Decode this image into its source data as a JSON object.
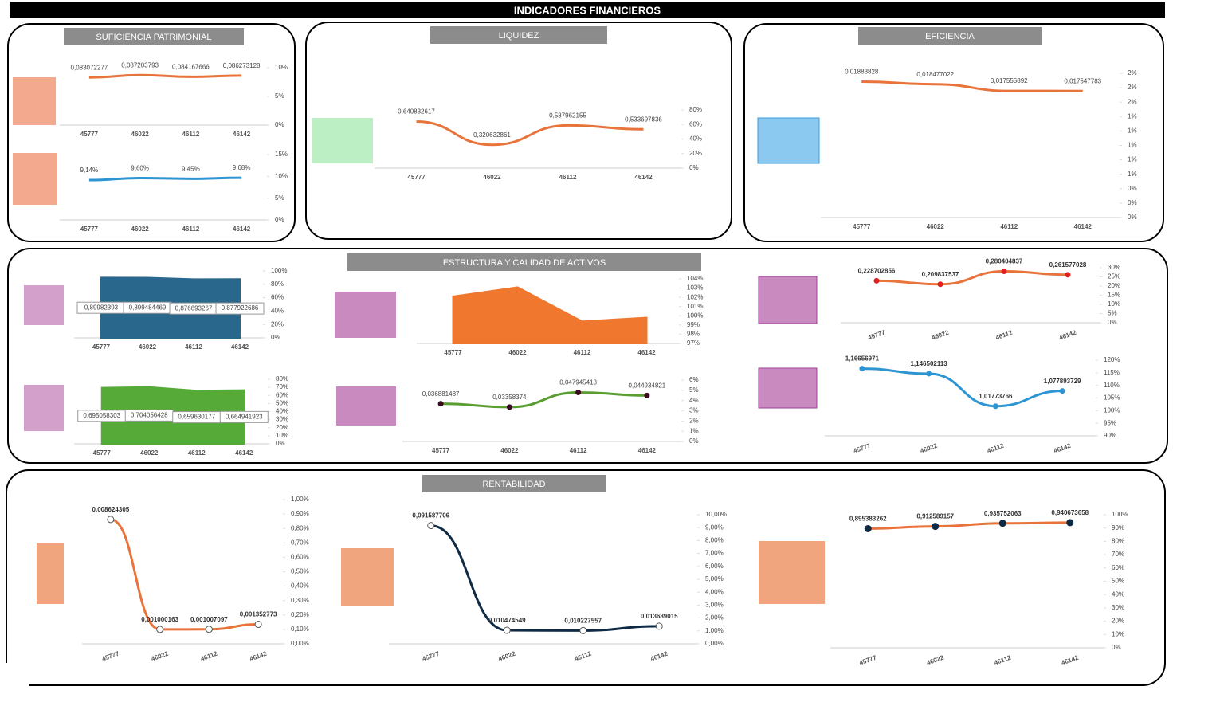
{
  "title": "INDICADORES FINANCIEROS",
  "sections": [
    "SUFICIENCIA PATRIMONIAL",
    "LIQUIDEZ",
    "EFICIENCIA",
    "ESTRUCTURA Y CALIDAD DE ACTIVOS",
    "RENTABILIDAD"
  ],
  "chart_data": [
    {
      "type": "line",
      "color": "#E8743B",
      "categories": [
        "45777",
        "46022",
        "46112",
        "46142"
      ],
      "values": [
        0.083072277,
        0.087203793,
        0.084167666,
        0.086273128
      ],
      "value_labels": [
        "0,083072277",
        "0,087203793",
        "0,084167666",
        "0,086273128"
      ],
      "ylim": [
        0,
        0.1
      ],
      "yticks": [
        {
          "value": 0,
          "label": "0%"
        },
        {
          "value": 0.05,
          "label": "5%"
        },
        {
          "value": 0.1,
          "label": "10%"
        }
      ]
    },
    {
      "type": "line",
      "color": "#2E95D3",
      "categories": [
        "45777",
        "46022",
        "46112",
        "46142"
      ],
      "values": [
        9.14,
        9.6,
        9.45,
        9.68
      ],
      "value_labels": [
        "9,14%",
        "9,60%",
        "9,45%",
        "9,68%"
      ],
      "ylim": [
        0,
        15
      ],
      "yticks": [
        {
          "value": 0,
          "label": "0%"
        },
        {
          "value": 5,
          "label": "5%"
        },
        {
          "value": 10,
          "label": "10%"
        },
        {
          "value": 15,
          "label": "15%"
        }
      ]
    },
    {
      "type": "line",
      "color": "#E8743B",
      "categories": [
        "45777",
        "46022",
        "46112",
        "46142"
      ],
      "values": [
        0.640832617,
        0.320632861,
        0.587962155,
        0.533697836
      ],
      "value_labels": [
        "0,640832617",
        "0,320632861",
        "0,587962155",
        "0,533697836"
      ],
      "ylim": [
        0,
        0.8
      ],
      "yticks": [
        {
          "value": 0,
          "label": "0%"
        },
        {
          "value": 0.2,
          "label": "20%"
        },
        {
          "value": 0.4,
          "label": "40%"
        },
        {
          "value": 0.6,
          "label": "60%"
        },
        {
          "value": 0.8,
          "label": "80%"
        }
      ]
    },
    {
      "type": "line",
      "color": "#E8743B",
      "categories": [
        "45777",
        "46022",
        "46112",
        "46142"
      ],
      "values": [
        0.01883828,
        0.018477022,
        0.017555892,
        0.017547783
      ],
      "value_labels": [
        "0,01883828",
        "0,018477022",
        "0,017555892",
        "0,017547783"
      ],
      "ylim": [
        0,
        0.02
      ],
      "yticks": [
        {
          "value": 0,
          "label": "0%"
        },
        {
          "value": 0.002,
          "label": "0%"
        },
        {
          "value": 0.004,
          "label": "0%"
        },
        {
          "value": 0.006,
          "label": "1%"
        },
        {
          "value": 0.008,
          "label": "1%"
        },
        {
          "value": 0.01,
          "label": "1%"
        },
        {
          "value": 0.012,
          "label": "1%"
        },
        {
          "value": 0.014,
          "label": "1%"
        },
        {
          "value": 0.016,
          "label": "2%"
        },
        {
          "value": 0.018,
          "label": "2%"
        },
        {
          "value": 0.02,
          "label": "2%"
        }
      ]
    },
    {
      "type": "area",
      "color": "#1F5F87",
      "categories": [
        "45777",
        "46022",
        "46112",
        "46142"
      ],
      "values": [
        0.89982393,
        0.899484469,
        0.876693267,
        0.877922686
      ],
      "value_labels": [
        "0,89982393",
        "0,899484469",
        "0,876693267",
        "0,877922686"
      ],
      "ylim": [
        0,
        1
      ],
      "yticks": [
        {
          "value": 0,
          "label": "0%"
        },
        {
          "value": 0.2,
          "label": "20%"
        },
        {
          "value": 0.4,
          "label": "40%"
        },
        {
          "value": 0.6,
          "label": "60%"
        },
        {
          "value": 0.8,
          "label": "80%"
        },
        {
          "value": 1,
          "label": "100%"
        }
      ]
    },
    {
      "type": "area",
      "color": "#4EA72E",
      "categories": [
        "45777",
        "46022",
        "46112",
        "46142"
      ],
      "values": [
        0.695058303,
        0.704056428,
        0.659630177,
        0.664941923
      ],
      "value_labels": [
        "0,695058303",
        "0,704056428",
        "0,659630177",
        "0,664941923"
      ],
      "ylim": [
        0,
        0.8
      ],
      "yticks": [
        {
          "value": 0,
          "label": "0%"
        },
        {
          "value": 0.1,
          "label": "10%"
        },
        {
          "value": 0.2,
          "label": "20%"
        },
        {
          "value": 0.3,
          "label": "30%"
        },
        {
          "value": 0.4,
          "label": "40%"
        },
        {
          "value": 0.5,
          "label": "50%"
        },
        {
          "value": 0.6,
          "label": "60%"
        },
        {
          "value": 0.7,
          "label": "70%"
        },
        {
          "value": 0.8,
          "label": "80%"
        }
      ]
    },
    {
      "type": "area",
      "color": "#F07023",
      "categories": [
        "45777",
        "46022",
        "46112",
        "46142"
      ],
      "values": [
        1.021,
        1.031,
        0.994,
        0.998
      ],
      "ylim": [
        0.97,
        1.04
      ],
      "yticks": [
        {
          "value": 0.97,
          "label": "97%"
        },
        {
          "value": 0.98,
          "label": "98%"
        },
        {
          "value": 0.99,
          "label": "99%"
        },
        {
          "value": 1,
          "label": "100%"
        },
        {
          "value": 1.01,
          "label": "101%"
        },
        {
          "value": 1.02,
          "label": "102%"
        },
        {
          "value": 1.03,
          "label": "103%"
        },
        {
          "value": 1.04,
          "label": "104%"
        }
      ]
    },
    {
      "type": "line",
      "color": "#5A9E32",
      "marker_color": "#3A0A20",
      "categories": [
        "45777",
        "46022",
        "46112",
        "46142"
      ],
      "values": [
        0.036881487,
        0.03358374,
        0.047945418,
        0.044934821
      ],
      "value_labels": [
        "0,036881487",
        "0,03358374",
        "0,047945418",
        "0,044934821"
      ],
      "ylim": [
        0,
        0.06
      ],
      "yticks": [
        {
          "value": 0,
          "label": "0%"
        },
        {
          "value": 0.01,
          "label": "1%"
        },
        {
          "value": 0.02,
          "label": "2%"
        },
        {
          "value": 0.03,
          "label": "3%"
        },
        {
          "value": 0.04,
          "label": "4%"
        },
        {
          "value": 0.05,
          "label": "5%"
        },
        {
          "value": 0.06,
          "label": "6%"
        }
      ]
    },
    {
      "type": "line",
      "color": "#E8743B",
      "marker_color": "#E02020",
      "categories": [
        "45777",
        "46022",
        "46112",
        "46142"
      ],
      "values": [
        0.228702856,
        0.209837537,
        0.280404837,
        0.261577028
      ],
      "value_labels": [
        "0,228702856",
        "0,209837537",
        "0,280404837",
        "0,261577028"
      ],
      "ylim": [
        0,
        0.3
      ],
      "yticks": [
        {
          "value": 0,
          "label": "0%"
        },
        {
          "value": 0.05,
          "label": "5%"
        },
        {
          "value": 0.1,
          "label": "10%"
        },
        {
          "value": 0.15,
          "label": "15%"
        },
        {
          "value": 0.2,
          "label": "20%"
        },
        {
          "value": 0.25,
          "label": "25%"
        },
        {
          "value": 0.3,
          "label": "30%"
        }
      ]
    },
    {
      "type": "line",
      "color": "#2E95D3",
      "marker_color": "#2E95D3",
      "categories": [
        "45777",
        "46022",
        "46112",
        "46142"
      ],
      "values": [
        1.16656971,
        1.146502113,
        1.01773766,
        1.077893729
      ],
      "value_labels": [
        "1,16656971",
        "1,146502113",
        "1,01773766",
        "1,077893729"
      ],
      "ylim": [
        0.9,
        1.2
      ],
      "yticks": [
        {
          "value": 0.9,
          "label": "90%"
        },
        {
          "value": 0.95,
          "label": "95%"
        },
        {
          "value": 1,
          "label": "100%"
        },
        {
          "value": 1.05,
          "label": "105%"
        },
        {
          "value": 1.1,
          "label": "110%"
        },
        {
          "value": 1.15,
          "label": "115%"
        },
        {
          "value": 1.2,
          "label": "120%"
        }
      ]
    },
    {
      "type": "line",
      "color": "#E8743B",
      "marker_color": "#FFFFFF",
      "categories": [
        "45777",
        "46022",
        "46112",
        "46142"
      ],
      "values": [
        0.008624305,
        0.001000163,
        0.001007097,
        0.001352773
      ],
      "value_labels": [
        "0,008624305",
        "0,001000163",
        "0,001007097",
        "0,001352773"
      ],
      "ylim": [
        0,
        0.01
      ],
      "yticks": [
        {
          "value": 0,
          "label": "0,00%"
        },
        {
          "value": 0.001,
          "label": "0,10%"
        },
        {
          "value": 0.002,
          "label": "0,20%"
        },
        {
          "value": 0.003,
          "label": "0,30%"
        },
        {
          "value": 0.004,
          "label": "0,40%"
        },
        {
          "value": 0.005,
          "label": "0,50%"
        },
        {
          "value": 0.006,
          "label": "0,60%"
        },
        {
          "value": 0.007,
          "label": "0,70%"
        },
        {
          "value": 0.008,
          "label": "0,80%"
        },
        {
          "value": 0.009,
          "label": "0,90%"
        },
        {
          "value": 0.01,
          "label": "1,00%"
        }
      ]
    },
    {
      "type": "line",
      "color": "#0F2A44",
      "marker_color": "#FFFFFF",
      "categories": [
        "45777",
        "46022",
        "46112",
        "46142"
      ],
      "values": [
        0.091587706,
        0.010474549,
        0.010227557,
        0.013689015
      ],
      "value_labels": [
        "0,091587706",
        "0,010474549",
        "0,010227557",
        "0,013689015"
      ],
      "ylim": [
        0,
        0.1
      ],
      "yticks": [
        {
          "value": 0,
          "label": "0,00%"
        },
        {
          "value": 0.01,
          "label": "1,00%"
        },
        {
          "value": 0.02,
          "label": "2,00%"
        },
        {
          "value": 0.03,
          "label": "3,00%"
        },
        {
          "value": 0.04,
          "label": "4,00%"
        },
        {
          "value": 0.05,
          "label": "5,00%"
        },
        {
          "value": 0.06,
          "label": "6,00%"
        },
        {
          "value": 0.07,
          "label": "7,00%"
        },
        {
          "value": 0.08,
          "label": "8,00%"
        },
        {
          "value": 0.09,
          "label": "9,00%"
        },
        {
          "value": 0.1,
          "label": "10,00%"
        }
      ]
    },
    {
      "type": "line",
      "color": "#E8743B",
      "marker_color": "#0F2A44",
      "categories": [
        "45777",
        "46022",
        "46112",
        "46142"
      ],
      "values": [
        0.895383262,
        0.912589157,
        0.935752063,
        0.940673658
      ],
      "value_labels": [
        "0,895383262",
        "0,912589157",
        "0,935752063",
        "0,940673658"
      ],
      "ylim": [
        0,
        1
      ],
      "yticks": [
        {
          "value": 0,
          "label": "0%"
        },
        {
          "value": 0.1,
          "label": "10%"
        },
        {
          "value": 0.2,
          "label": "20%"
        },
        {
          "value": 0.3,
          "label": "30%"
        },
        {
          "value": 0.4,
          "label": "40%"
        },
        {
          "value": 0.5,
          "label": "50%"
        },
        {
          "value": 0.6,
          "label": "60%"
        },
        {
          "value": 0.7,
          "label": "70%"
        },
        {
          "value": 0.8,
          "label": "80%"
        },
        {
          "value": 0.9,
          "label": "90%"
        },
        {
          "value": 1,
          "label": "100%"
        }
      ]
    }
  ]
}
